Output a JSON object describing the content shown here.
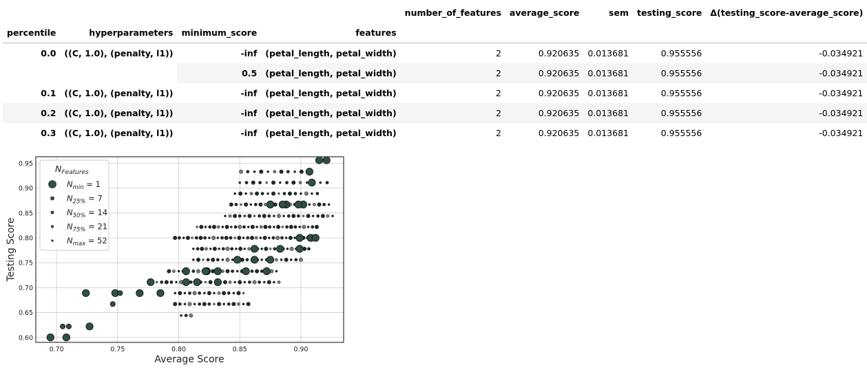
{
  "table": {
    "header_row1": [
      "",
      "",
      "",
      "",
      "number_of_features",
      "average_score",
      "sem",
      "testing_score",
      "Δ(testing_score-average_score)"
    ],
    "header_row2": [
      "percentile",
      "hyperparameters",
      "minimum_score",
      "features",
      "",
      "",
      "",
      "",
      ""
    ],
    "rows": [
      {
        "percentile": "0.0",
        "hyperparameters": "((C, 1.0), (penalty, l1))",
        "minimum_score": "-inf",
        "features": "(petal_length, petal_width)",
        "number_of_features": "2",
        "average_score": "0.920635",
        "sem": "0.013681",
        "testing_score": "0.955556",
        "delta": "-0.034921"
      },
      {
        "percentile": "",
        "hyperparameters": "",
        "minimum_score": "0.5",
        "features": "(petal_length, petal_width)",
        "number_of_features": "2",
        "average_score": "0.920635",
        "sem": "0.013681",
        "testing_score": "0.955556",
        "delta": "-0.034921"
      },
      {
        "percentile": "0.1",
        "hyperparameters": "((C, 1.0), (penalty, l1))",
        "minimum_score": "-inf",
        "features": "(petal_length, petal_width)",
        "number_of_features": "2",
        "average_score": "0.920635",
        "sem": "0.013681",
        "testing_score": "0.955556",
        "delta": "-0.034921"
      },
      {
        "percentile": "0.2",
        "hyperparameters": "((C, 1.0), (penalty, l1))",
        "minimum_score": "-inf",
        "features": "(petal_length, petal_width)",
        "number_of_features": "2",
        "average_score": "0.920635",
        "sem": "0.013681",
        "testing_score": "0.955556",
        "delta": "-0.034921"
      },
      {
        "percentile": "0.3",
        "hyperparameters": "((C, 1.0), (penalty, l1))",
        "minimum_score": "-inf",
        "features": "(petal_length, petal_width)",
        "number_of_features": "2",
        "average_score": "0.920635",
        "sem": "0.013681",
        "testing_score": "0.955556",
        "delta": "-0.034921"
      }
    ]
  },
  "chart_data": {
    "type": "scatter",
    "xlabel": "Average Score",
    "ylabel": "Testing Score",
    "xlim": [
      0.683,
      0.935
    ],
    "ylim": [
      0.59,
      0.963
    ],
    "xticks": [
      "0.70",
      "0.75",
      "0.80",
      "0.85",
      "0.90"
    ],
    "xtick_values": [
      0.7,
      0.75,
      0.8,
      0.85,
      0.9
    ],
    "yticks": [
      "0.60",
      "0.65",
      "0.70",
      "0.75",
      "0.80",
      "0.85",
      "0.90",
      "0.95"
    ],
    "ytick_values": [
      0.6,
      0.65,
      0.7,
      0.75,
      0.8,
      0.85,
      0.9,
      0.95
    ],
    "grid": true,
    "legend_placement": "top-left",
    "legend_title_base": "N",
    "legend_title_sub": "Features",
    "legend": [
      {
        "base": "N",
        "sub": "min",
        "label": " = 1",
        "size_class": 1
      },
      {
        "base": "N",
        "sub": "25%",
        "label": " = 7",
        "size_class": 2
      },
      {
        "base": "N",
        "sub": "50%",
        "label": " = 14",
        "size_class": 3
      },
      {
        "base": "N",
        "sub": "75%",
        "label": " = 21",
        "size_class": 4
      },
      {
        "base": "N",
        "sub": "max",
        "label": " = 52",
        "size_class": 5
      }
    ],
    "colors": {
      "dark": "#2f4f4a",
      "mid": "#1e2a28",
      "light": "#777777",
      "frame": "#333333",
      "grid": "#cccccc"
    },
    "points": [
      [
        0.695,
        0.6,
        1
      ],
      [
        0.708,
        0.6,
        1
      ],
      [
        0.705,
        0.622,
        2
      ],
      [
        0.71,
        0.622,
        2
      ],
      [
        0.727,
        0.622,
        1
      ],
      [
        0.724,
        0.689,
        1
      ],
      [
        0.748,
        0.689,
        1
      ],
      [
        0.752,
        0.689,
        2
      ],
      [
        0.768,
        0.689,
        1
      ],
      [
        0.746,
        0.667,
        2
      ],
      [
        0.785,
        0.689,
        1
      ],
      [
        0.777,
        0.711,
        1
      ],
      [
        0.806,
        0.711,
        1
      ],
      [
        0.815,
        0.711,
        1
      ],
      [
        0.832,
        0.711,
        1
      ],
      [
        0.823,
        0.733,
        1
      ],
      [
        0.848,
        0.756,
        1
      ],
      [
        0.862,
        0.778,
        1
      ],
      [
        0.875,
        0.867,
        1
      ],
      [
        0.888,
        0.867,
        1
      ],
      [
        0.902,
        0.867,
        1
      ],
      [
        0.899,
        0.8,
        1
      ],
      [
        0.908,
        0.8,
        1
      ],
      [
        0.912,
        0.8,
        1
      ],
      [
        0.907,
        0.933,
        1
      ],
      [
        0.915,
        0.956,
        1
      ],
      [
        0.921,
        0.956,
        1
      ],
      [
        0.909,
        0.911,
        1
      ],
      [
        0.899,
        0.778,
        1
      ],
      [
        0.883,
        0.778,
        1
      ],
      [
        0.862,
        0.756,
        1
      ],
      [
        0.872,
        0.733,
        1
      ],
      [
        0.875,
        0.756,
        1
      ],
      [
        0.806,
        0.733,
        1
      ],
      [
        0.822,
        0.733,
        1
      ],
      [
        0.832,
        0.733,
        1
      ],
      [
        0.855,
        0.733,
        1
      ],
      [
        0.875,
        0.867,
        1
      ],
      [
        0.885,
        0.867,
        1
      ],
      [
        0.898,
        0.867,
        1
      ]
    ],
    "bands": [
      {
        "y": 0.933,
        "x0": 0.851,
        "x1": 0.908,
        "step": 0.0055
      },
      {
        "y": 0.911,
        "x0": 0.85,
        "x1": 0.925,
        "step": 0.0055
      },
      {
        "y": 0.889,
        "x0": 0.846,
        "x1": 0.915,
        "step": 0.0045
      },
      {
        "y": 0.867,
        "x0": 0.843,
        "x1": 0.926,
        "step": 0.004
      },
      {
        "y": 0.844,
        "x0": 0.838,
        "x1": 0.926,
        "step": 0.004
      },
      {
        "y": 0.822,
        "x0": 0.815,
        "x1": 0.913,
        "step": 0.0035
      },
      {
        "y": 0.8,
        "x0": 0.797,
        "x1": 0.91,
        "step": 0.0035
      },
      {
        "y": 0.778,
        "x0": 0.812,
        "x1": 0.909,
        "step": 0.0035
      },
      {
        "y": 0.756,
        "x0": 0.812,
        "x1": 0.9,
        "step": 0.004
      },
      {
        "y": 0.733,
        "x0": 0.792,
        "x1": 0.88,
        "step": 0.004
      },
      {
        "y": 0.711,
        "x0": 0.782,
        "x1": 0.883,
        "step": 0.004
      },
      {
        "y": 0.689,
        "x0": 0.797,
        "x1": 0.854,
        "step": 0.004
      },
      {
        "y": 0.667,
        "x0": 0.797,
        "x1": 0.86,
        "step": 0.004
      },
      {
        "y": 0.644,
        "x0": 0.802,
        "x1": 0.813,
        "step": 0.004
      }
    ]
  }
}
